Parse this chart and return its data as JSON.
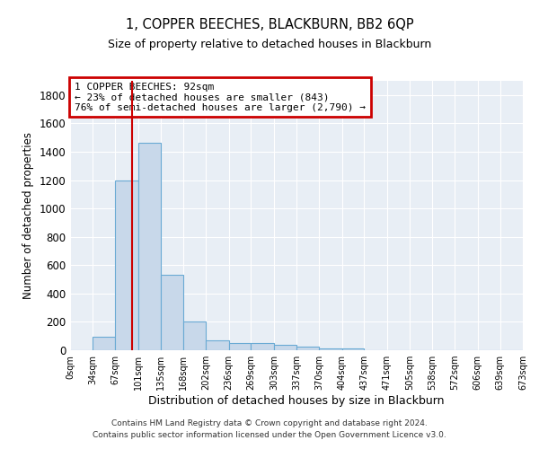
{
  "title": "1, COPPER BEECHES, BLACKBURN, BB2 6QP",
  "subtitle": "Size of property relative to detached houses in Blackburn",
  "xlabel": "Distribution of detached houses by size in Blackburn",
  "ylabel": "Number of detached properties",
  "footer1": "Contains HM Land Registry data © Crown copyright and database right 2024.",
  "footer2": "Contains public sector information licensed under the Open Government Licence v3.0.",
  "bar_values": [
    0,
    95,
    1200,
    1460,
    535,
    205,
    70,
    48,
    48,
    35,
    25,
    10,
    15,
    0,
    0,
    0,
    0,
    0,
    0,
    0
  ],
  "bar_edges": [
    0,
    34,
    67,
    101,
    135,
    168,
    202,
    236,
    269,
    303,
    337,
    370,
    404,
    437,
    471,
    505,
    538,
    572,
    606,
    639,
    673
  ],
  "tick_labels": [
    "0sqm",
    "34sqm",
    "67sqm",
    "101sqm",
    "135sqm",
    "168sqm",
    "202sqm",
    "236sqm",
    "269sqm",
    "303sqm",
    "337sqm",
    "370sqm",
    "404sqm",
    "437sqm",
    "471sqm",
    "505sqm",
    "538sqm",
    "572sqm",
    "606sqm",
    "639sqm",
    "673sqm"
  ],
  "bar_color": "#c8d8ea",
  "bar_edge_color": "#6aaad4",
  "grid_color": "#ffffff",
  "bg_color": "#e8eef5",
  "property_size": 92,
  "property_line_color": "#cc0000",
  "annotation_text": "1 COPPER BEECHES: 92sqm\n← 23% of detached houses are smaller (843)\n76% of semi-detached houses are larger (2,790) →",
  "annotation_box_color": "#cc0000",
  "ylim": [
    0,
    1900
  ],
  "yticks": [
    0,
    200,
    400,
    600,
    800,
    1000,
    1200,
    1400,
    1600,
    1800
  ]
}
